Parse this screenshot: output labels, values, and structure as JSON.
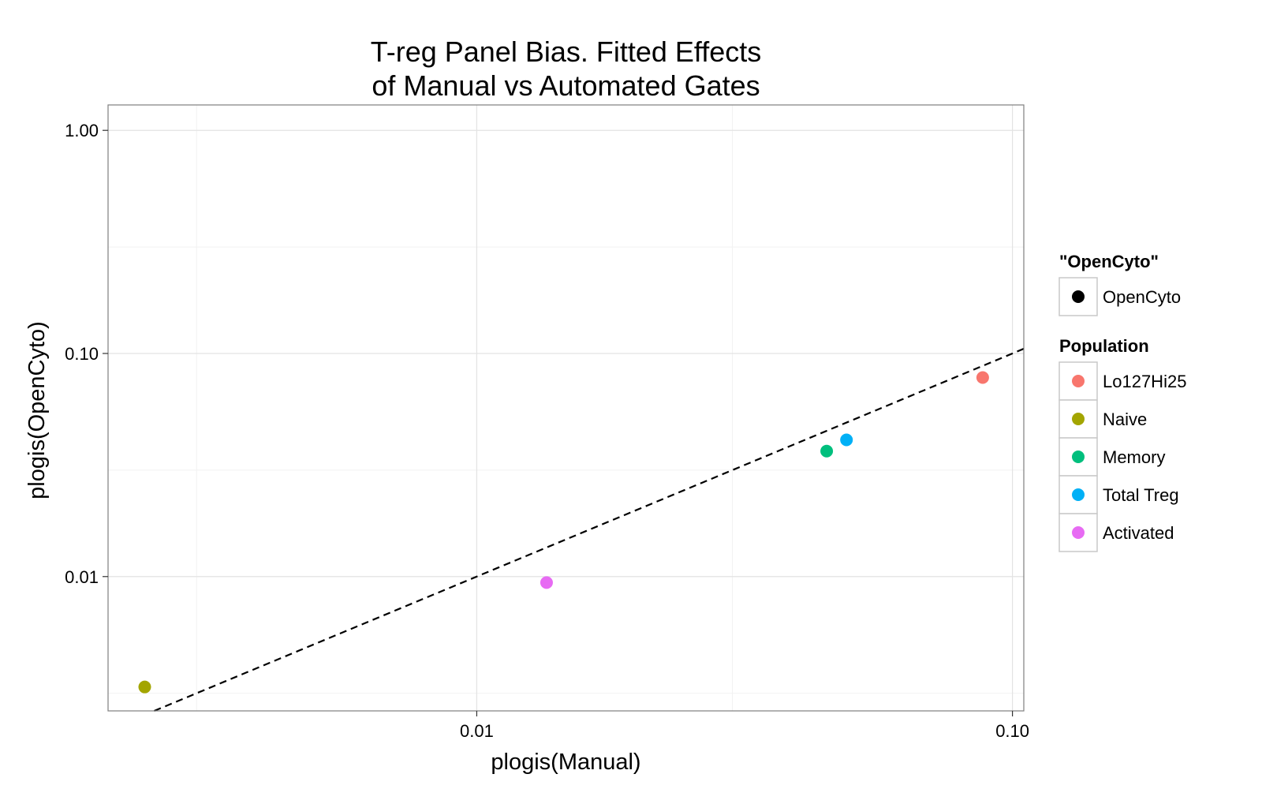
{
  "chart_data": {
    "type": "scatter",
    "title_lines": [
      "T-reg Panel Bias. Fitted Effects",
      "of Manual vs Automated Gates"
    ],
    "xlabel": "plogis(Manual)",
    "ylabel": "plogis(OpenCyto)",
    "x_scale": "log10",
    "y_scale": "log10",
    "xlim": [
      0.00205,
      0.105
    ],
    "ylim": [
      0.0025,
      1.3
    ],
    "x_ticks": [
      {
        "value": 0.01,
        "label": "0.01"
      },
      {
        "value": 0.1,
        "label": "0.10"
      }
    ],
    "x_minor_ticks": [
      0.003,
      0.03
    ],
    "y_ticks": [
      {
        "value": 0.01,
        "label": "0.01"
      },
      {
        "value": 0.1,
        "label": "0.10"
      },
      {
        "value": 1.0,
        "label": "1.00"
      }
    ],
    "y_minor_ticks": [
      0.003,
      0.03,
      0.3
    ],
    "grid": true,
    "reference_line": {
      "type": "identity",
      "style": "dashed",
      "color": "#000000"
    },
    "series": [
      {
        "name": "Lo127Hi25",
        "color": "#F8766D",
        "x": [
          0.088
        ],
        "y": [
          0.078
        ]
      },
      {
        "name": "Naive",
        "color": "#A3A500",
        "x": [
          0.0024
        ],
        "y": [
          0.0032
        ]
      },
      {
        "name": "Memory",
        "color": "#00BF7D",
        "x": [
          0.045
        ],
        "y": [
          0.0365
        ]
      },
      {
        "name": "Total Treg",
        "color": "#00B0F6",
        "x": [
          0.049
        ],
        "y": [
          0.041
        ]
      },
      {
        "name": "Activated",
        "color": "#E76BF3",
        "x": [
          0.0135
        ],
        "y": [
          0.0094
        ]
      }
    ],
    "legends": [
      {
        "title": "\"OpenCyto\"",
        "entries": [
          {
            "label": "OpenCyto",
            "color": "#000000"
          }
        ]
      },
      {
        "title": "Population",
        "entries": [
          {
            "label": "Lo127Hi25",
            "color": "#F8766D"
          },
          {
            "label": "Naive",
            "color": "#A3A500"
          },
          {
            "label": "Memory",
            "color": "#00BF7D"
          },
          {
            "label": "Total Treg",
            "color": "#00B0F6"
          },
          {
            "label": "Activated",
            "color": "#E76BF3"
          }
        ]
      }
    ],
    "legend_position": "right"
  }
}
